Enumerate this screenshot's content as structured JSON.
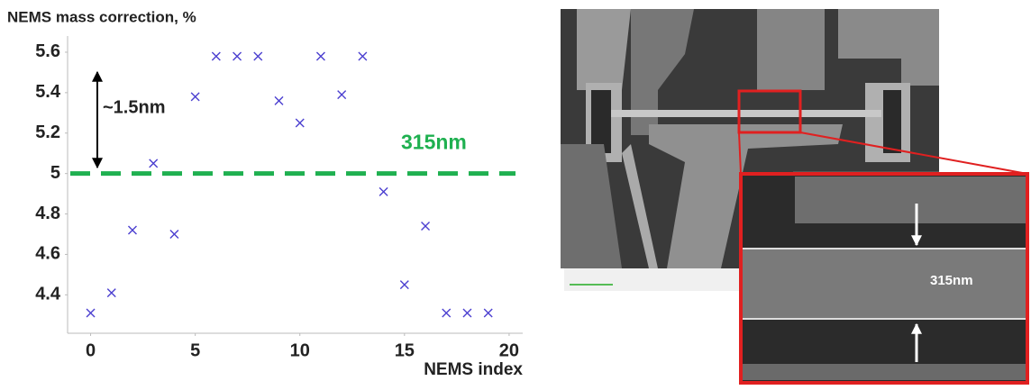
{
  "chart_data": {
    "type": "scatter",
    "title": "NEMS mass correction, %",
    "x_label": "NEMS index",
    "x": [
      0,
      1,
      2,
      3,
      4,
      5,
      6,
      7,
      8,
      9,
      10,
      11,
      12,
      13,
      14,
      15,
      16,
      17,
      18,
      19
    ],
    "series": [
      {
        "color": "#4b3fd0",
        "values": [
          4.31,
          4.41,
          4.72,
          5.05,
          4.7,
          5.38,
          5.58,
          5.58,
          5.58,
          5.36,
          5.25,
          5.58,
          5.39,
          5.58,
          4.91,
          4.45,
          4.74,
          4.31,
          4.31,
          4.31
        ]
      }
    ],
    "xlim": [
      -1.1,
      20.65
    ],
    "ylim": [
      4.21,
      5.68
    ],
    "xticks": [
      0,
      5,
      10,
      15,
      20
    ],
    "yticks": [
      4.4,
      4.6,
      4.8,
      5,
      5.2,
      5.4,
      5.6
    ],
    "reference_line": {
      "value": 5,
      "color": "#1fb050",
      "label": "315nm"
    },
    "annotation": "~1.5nm"
  },
  "image": {
    "inset_label": "315nm"
  }
}
